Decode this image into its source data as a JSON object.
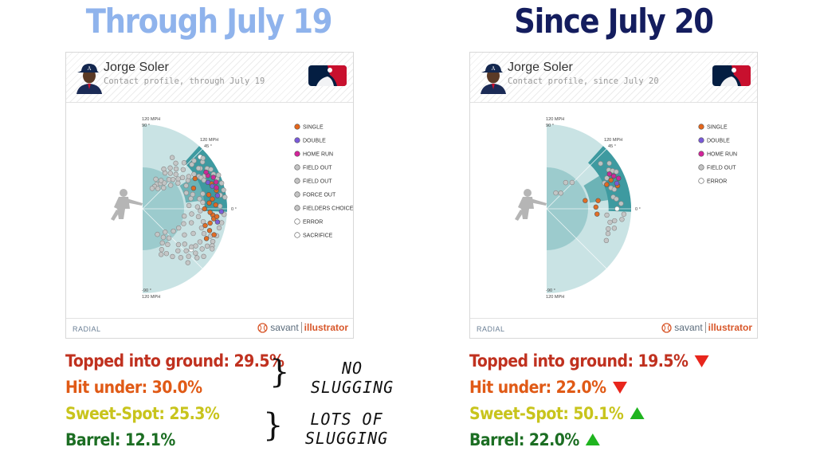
{
  "headings": {
    "left": {
      "text": "Through July 19",
      "color": "#8fb3ec"
    },
    "right": {
      "text": "Since July 20",
      "color": "#141d5e"
    }
  },
  "cards": [
    {
      "player": "Jorge Soler",
      "subtitle": "Contact profile, through July 19",
      "footer_left": "RADIAL",
      "footer_savant": "savant",
      "footer_illustrator": "illustrator",
      "axis_labels": {
        "top_speed": "120 MPH",
        "top_angle": "90 °",
        "mid_speed": "120 MPH",
        "mid_angle": "45 °",
        "zero": "0 °",
        "bottom_angle": "-90 °",
        "bottom_speed": "120 MPH"
      },
      "legend": [
        {
          "label": "SINGLE",
          "color": "#e4661b"
        },
        {
          "label": "DOUBLE",
          "color": "#7a5ad9"
        },
        {
          "label": "HOME RUN",
          "color": "#d3249a"
        },
        {
          "label": "FIELD OUT",
          "color": "#c4c4c4"
        },
        {
          "label": "FIELD OUT",
          "color": "#c4c4c4"
        },
        {
          "label": "FORCE OUT",
          "color": "#c4c4c4"
        },
        {
          "label": "FIELDERS CHOICE",
          "color": "#c4c4c4"
        },
        {
          "label": "ERROR",
          "color": "#ffffff"
        },
        {
          "label": "SACRIFICE",
          "color": "#ffffff"
        }
      ]
    },
    {
      "player": "Jorge Soler",
      "subtitle": "Contact profile, since July 20",
      "footer_left": "RADIAL",
      "footer_savant": "savant",
      "footer_illustrator": "illustrator",
      "axis_labels": {
        "top_speed": "120 MPH",
        "top_angle": "90 °",
        "mid_speed": "120 MPH",
        "mid_angle": "45 °",
        "zero": "0 °",
        "bottom_angle": "-90 °",
        "bottom_speed": "120 MPH"
      },
      "legend": [
        {
          "label": "SINGLE",
          "color": "#e4661b"
        },
        {
          "label": "DOUBLE",
          "color": "#7a5ad9"
        },
        {
          "label": "HOME RUN",
          "color": "#d3249a"
        },
        {
          "label": "FIELD OUT",
          "color": "#c4c4c4"
        },
        {
          "label": "ERROR",
          "color": "#ffffff"
        }
      ]
    }
  ],
  "stats_left": [
    {
      "text": "Topped into ground: 29.5%",
      "color": "#c0311f"
    },
    {
      "text": "Hit under: 30.0%",
      "color": "#e05a16"
    },
    {
      "text": "Sweet-Spot: 25.3%",
      "color": "#c8c41c"
    },
    {
      "text": "Barrel: 12.1%",
      "color": "#1c6e23"
    }
  ],
  "stats_right": [
    {
      "text": "Topped into ground: 19.5%",
      "color": "#c0311f",
      "arrow": "down"
    },
    {
      "text": "Hit under: 22.0%",
      "color": "#e05a16",
      "arrow": "down"
    },
    {
      "text": "Sweet-Spot: 50.1%",
      "color": "#c8c41c",
      "arrow": "up"
    },
    {
      "text": "Barrel: 22.0%",
      "color": "#1c6e23",
      "arrow": "up"
    }
  ],
  "arrow_colors": {
    "down": "#e8261c",
    "up": "#1fb41f"
  },
  "annotations": {
    "top": [
      "NO",
      "SLUGGING"
    ],
    "bottom": [
      "LOTS OF",
      "SLUGGING"
    ]
  },
  "chart_data": [
    {
      "type": "scatter",
      "title": "Jorge Soler — Contact profile, through July 19",
      "coordinate_system": "polar (radial: exit velocity 0–120 MPH, angle: launch angle -90° to 90°)",
      "r_range": [
        0,
        120
      ],
      "angle_range": [
        -90,
        90
      ],
      "angle_ticks": [
        "90 °",
        "45 °",
        "0 °",
        "-90 °"
      ],
      "zones": [
        "sweet-spot wedge",
        "barrel wedge"
      ],
      "legend": [
        "SINGLE",
        "DOUBLE",
        "HOME RUN",
        "FIELD OUT",
        "FIELD OUT",
        "FORCE OUT",
        "FIELDERS CHOICE",
        "ERROR",
        "SACRIFICE"
      ],
      "series": [
        {
          "name": "SINGLE",
          "points": [
            [
              30,
              86
            ],
            [
              14,
              108
            ],
            [
              20,
              104
            ],
            [
              -5,
              100
            ],
            [
              -8,
              102
            ],
            [
              -12,
              98
            ],
            [
              -18,
              100
            ],
            [
              5,
              95
            ],
            [
              -3,
              96
            ],
            [
              22,
              78
            ],
            [
              -20,
              108
            ],
            [
              -15,
              92
            ],
            [
              8,
              100
            ],
            [
              -6,
              106
            ],
            [
              0,
              88
            ],
            [
              12,
              96
            ],
            [
              -25,
              100
            ],
            [
              3,
              104
            ]
          ]
        },
        {
          "name": "DOUBLE",
          "points": [
            [
              18,
              104
            ],
            [
              22,
              100
            ],
            [
              10,
              108
            ],
            [
              -10,
              108
            ],
            [
              -2,
              112
            ]
          ]
        },
        {
          "name": "HOME RUN",
          "points": [
            [
              24,
              110
            ],
            [
              27,
              104
            ],
            [
              20,
              111
            ],
            [
              30,
              104
            ],
            [
              16,
              109
            ]
          ]
        },
        {
          "name": "FIELD OUT",
          "points": [
            [
              60,
              40
            ],
            [
              55,
              44
            ],
            [
              62,
              36
            ],
            [
              50,
              48
            ],
            [
              48,
              56
            ],
            [
              65,
              32
            ],
            [
              58,
              60
            ],
            [
              45,
              42
            ],
            [
              52,
              64
            ],
            [
              40,
              52
            ],
            [
              57,
              48
            ],
            [
              66,
              46
            ],
            [
              53,
              36
            ],
            [
              44,
              60
            ],
            [
              46,
              68
            ],
            [
              40,
              66
            ],
            [
              38,
              72
            ],
            [
              36,
              62
            ],
            [
              32,
              76
            ],
            [
              30,
              92
            ],
            [
              28,
              100
            ],
            [
              35,
              100
            ],
            [
              38,
              108
            ],
            [
              40,
              112
            ],
            [
              26,
              112
            ],
            [
              32,
              108
            ],
            [
              36,
              98
            ],
            [
              28,
              94
            ],
            [
              34,
              88
            ],
            [
              42,
              94
            ],
            [
              43,
              100
            ],
            [
              25,
              96
            ],
            [
              30,
              112
            ],
            [
              22,
              114
            ],
            [
              18,
              118
            ],
            [
              24,
              118
            ],
            [
              13,
              118
            ],
            [
              10,
              112
            ],
            [
              8,
              118
            ],
            [
              2,
              110
            ],
            [
              -4,
              116
            ],
            [
              -10,
              114
            ],
            [
              -14,
              112
            ],
            [
              -20,
              112
            ],
            [
              -25,
              110
            ],
            [
              -30,
              106
            ],
            [
              -35,
              92
            ],
            [
              -40,
              78
            ],
            [
              -45,
              72
            ],
            [
              -50,
              78
            ],
            [
              -55,
              62
            ],
            [
              -48,
              56
            ],
            [
              -60,
              56
            ],
            [
              -38,
              88
            ],
            [
              -34,
              102
            ],
            [
              -30,
              94
            ],
            [
              -22,
              94
            ],
            [
              -18,
              88
            ],
            [
              -12,
              88
            ],
            [
              -8,
              80
            ],
            [
              -2,
              82
            ],
            [
              2,
              78
            ],
            [
              6,
              86
            ],
            [
              10,
              82
            ],
            [
              14,
              88
            ],
            [
              -26,
              80
            ],
            [
              -16,
              72
            ],
            [
              -32,
              70
            ],
            [
              -22,
              104
            ],
            [
              -28,
              112
            ],
            [
              -40,
              98
            ],
            [
              -44,
              86
            ],
            [
              -46,
              94
            ],
            [
              -50,
              100
            ],
            [
              -52,
              88
            ],
            [
              -58,
              80
            ],
            [
              -62,
              72
            ],
            [
              -65,
              64
            ],
            [
              -68,
              70
            ],
            [
              -38,
              110
            ],
            [
              -42,
              104
            ],
            [
              -30,
              114
            ],
            [
              35,
              80
            ],
            [
              44,
              80
            ],
            [
              50,
              74
            ],
            [
              56,
              70
            ],
            [
              62,
              64
            ],
            [
              48,
              88
            ],
            [
              54,
              80
            ],
            [
              60,
              84
            ],
            [
              28,
              70
            ],
            [
              20,
              66
            ],
            [
              16,
              74
            ],
            [
              12,
              70
            ],
            [
              4,
              66
            ],
            [
              -6,
              70
            ],
            [
              -10,
              60
            ],
            [
              -20,
              62
            ],
            [
              -28,
              58
            ],
            [
              -36,
              54
            ],
            [
              -46,
              46
            ],
            [
              -54,
              50
            ],
            [
              -60,
              42
            ]
          ]
        },
        {
          "name": "ERROR",
          "points": [
            [
              -40,
              90
            ]
          ]
        },
        {
          "name": "SACRIFICE",
          "points": [
            [
              42,
              110
            ]
          ]
        }
      ]
    },
    {
      "type": "scatter",
      "title": "Jorge Soler — Contact profile, since July 20",
      "coordinate_system": "polar (radial: exit velocity 0–120 MPH, angle: launch angle -90° to 90°)",
      "r_range": [
        0,
        120
      ],
      "angle_range": [
        -90,
        90
      ],
      "angle_ticks": [
        "90 °",
        "45 °",
        "0 °",
        "-90 °"
      ],
      "zones": [
        "sweet-spot wedge",
        "barrel wedge"
      ],
      "legend": [
        "SINGLE",
        "DOUBLE",
        "HOME RUN",
        "FIELD OUT",
        "ERROR"
      ],
      "series": [
        {
          "name": "SINGLE",
          "points": [
            [
              12,
              56
            ],
            [
              9,
              74
            ],
            [
              2,
              70
            ],
            [
              24,
              100
            ],
            [
              -6,
              72
            ],
            [
              18,
              106
            ],
            [
              22,
              92
            ]
          ]
        },
        {
          "name": "DOUBLE",
          "points": [
            [
              20,
              106
            ]
          ]
        },
        {
          "name": "HOME RUN",
          "points": [
            [
              26,
              106
            ],
            [
              23,
              111
            ],
            [
              29,
              102
            ]
          ]
        },
        {
          "name": "FIELD OUT",
          "points": [
            [
              60,
              26
            ],
            [
              54,
              46
            ],
            [
              48,
              30
            ],
            [
              46,
              52
            ],
            [
              36,
              110
            ],
            [
              32,
              104
            ],
            [
              30,
              108
            ],
            [
              40,
              100
            ],
            [
              28,
              112
            ],
            [
              27,
              96
            ],
            [
              24,
              90
            ],
            [
              18,
              96
            ],
            [
              16,
              100
            ],
            [
              10,
              96
            ],
            [
              8,
              100
            ],
            [
              4,
              106
            ],
            [
              -4,
              110
            ],
            [
              -10,
              98
            ],
            [
              -12,
              92
            ],
            [
              -8,
              108
            ],
            [
              -16,
              100
            ],
            [
              -22,
              94
            ],
            [
              -28,
              96
            ],
            [
              -6,
              86
            ],
            [
              -18,
              92
            ]
          ]
        },
        {
          "name": "ERROR",
          "points": [
            [
              0,
              100
            ]
          ]
        }
      ]
    }
  ]
}
